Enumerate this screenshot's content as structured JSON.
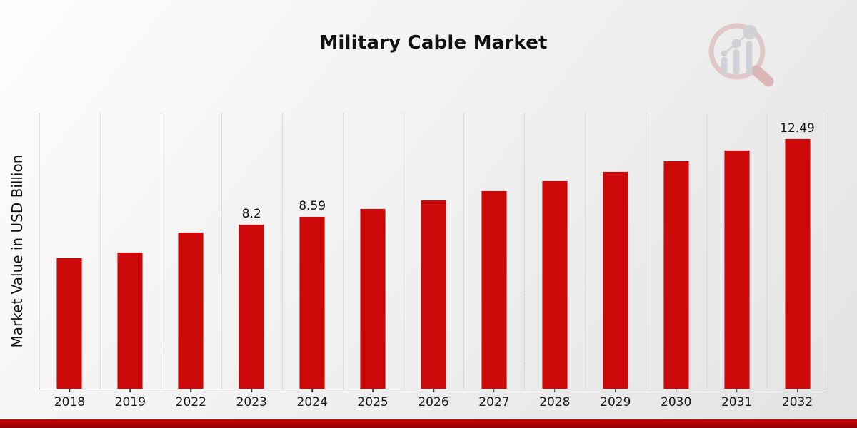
{
  "header": {
    "title": "Military Cable Market"
  },
  "branding": {
    "logo_icon": "mrfr-magnifier-growth-chart-logo",
    "ring_color": "#debcbc",
    "handle_color": "#d5a5a5",
    "bars_color": "#c7c9cd"
  },
  "chart_data": {
    "type": "bar",
    "title": "Military Cable Market",
    "xlabel": "",
    "ylabel": "Market Value in USD Billion",
    "categories": [
      "2018",
      "2019",
      "2022",
      "2023",
      "2024",
      "2025",
      "2026",
      "2027",
      "2028",
      "2029",
      "2030",
      "2031",
      "2032"
    ],
    "values": [
      6.51,
      6.82,
      7.82,
      8.2,
      8.59,
      9.0,
      9.43,
      9.88,
      10.36,
      10.85,
      11.37,
      11.92,
      12.49
    ],
    "bar_labels": [
      "",
      "",
      "",
      "8.2",
      "8.59",
      "",
      "",
      "",
      "",
      "",
      "",
      "",
      "12.49"
    ],
    "bar_color": "#cc0808",
    "ylim": [
      0,
      13.8
    ],
    "grid": "vertical dotted gridlines at category boundaries",
    "legend": "none"
  },
  "footer": {
    "band": "red-brand-strip"
  }
}
